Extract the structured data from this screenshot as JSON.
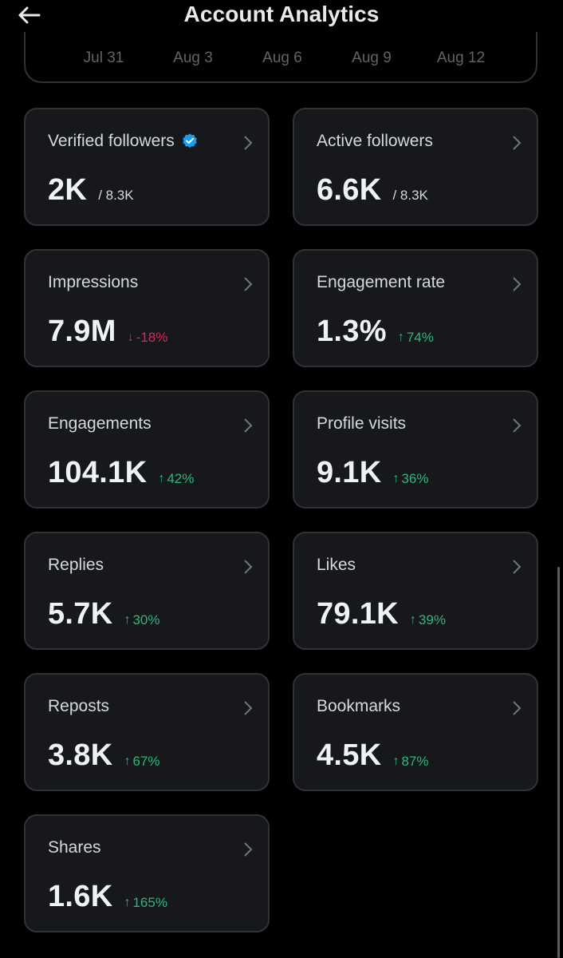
{
  "header": {
    "title": "Account Analytics"
  },
  "date_axis": {
    "labels": [
      "Jul 31",
      "Aug 3",
      "Aug 6",
      "Aug 9",
      "Aug 12"
    ]
  },
  "metrics": [
    {
      "label": "Verified followers",
      "value": "2K",
      "sub": "/ 8.3K",
      "verified_icon": true
    },
    {
      "label": "Active followers",
      "value": "6.6K",
      "sub": "/ 8.3K"
    },
    {
      "label": "Impressions",
      "value": "7.9M",
      "change": "-18%",
      "direction": "down"
    },
    {
      "label": "Engagement rate",
      "value": "1.3%",
      "change": "74%",
      "direction": "up"
    },
    {
      "label": "Engagements",
      "value": "104.1K",
      "change": "42%",
      "direction": "up"
    },
    {
      "label": "Profile visits",
      "value": "9.1K",
      "change": "36%",
      "direction": "up"
    },
    {
      "label": "Replies",
      "value": "5.7K",
      "change": "30%",
      "direction": "up"
    },
    {
      "label": "Likes",
      "value": "79.1K",
      "change": "39%",
      "direction": "up"
    },
    {
      "label": "Reposts",
      "value": "3.8K",
      "change": "67%",
      "direction": "up"
    },
    {
      "label": "Bookmarks",
      "value": "4.5K",
      "change": "87%",
      "direction": "up"
    },
    {
      "label": "Shares",
      "value": "1.6K",
      "change": "165%",
      "direction": "up"
    }
  ],
  "icons": {
    "back": "arrow-left-icon",
    "verified": "verified-badge-icon",
    "chevron": "chevron-right-icon"
  },
  "colors": {
    "up": "#2fb77a",
    "down": "#e0245e",
    "verified": "#1d9bf0"
  }
}
